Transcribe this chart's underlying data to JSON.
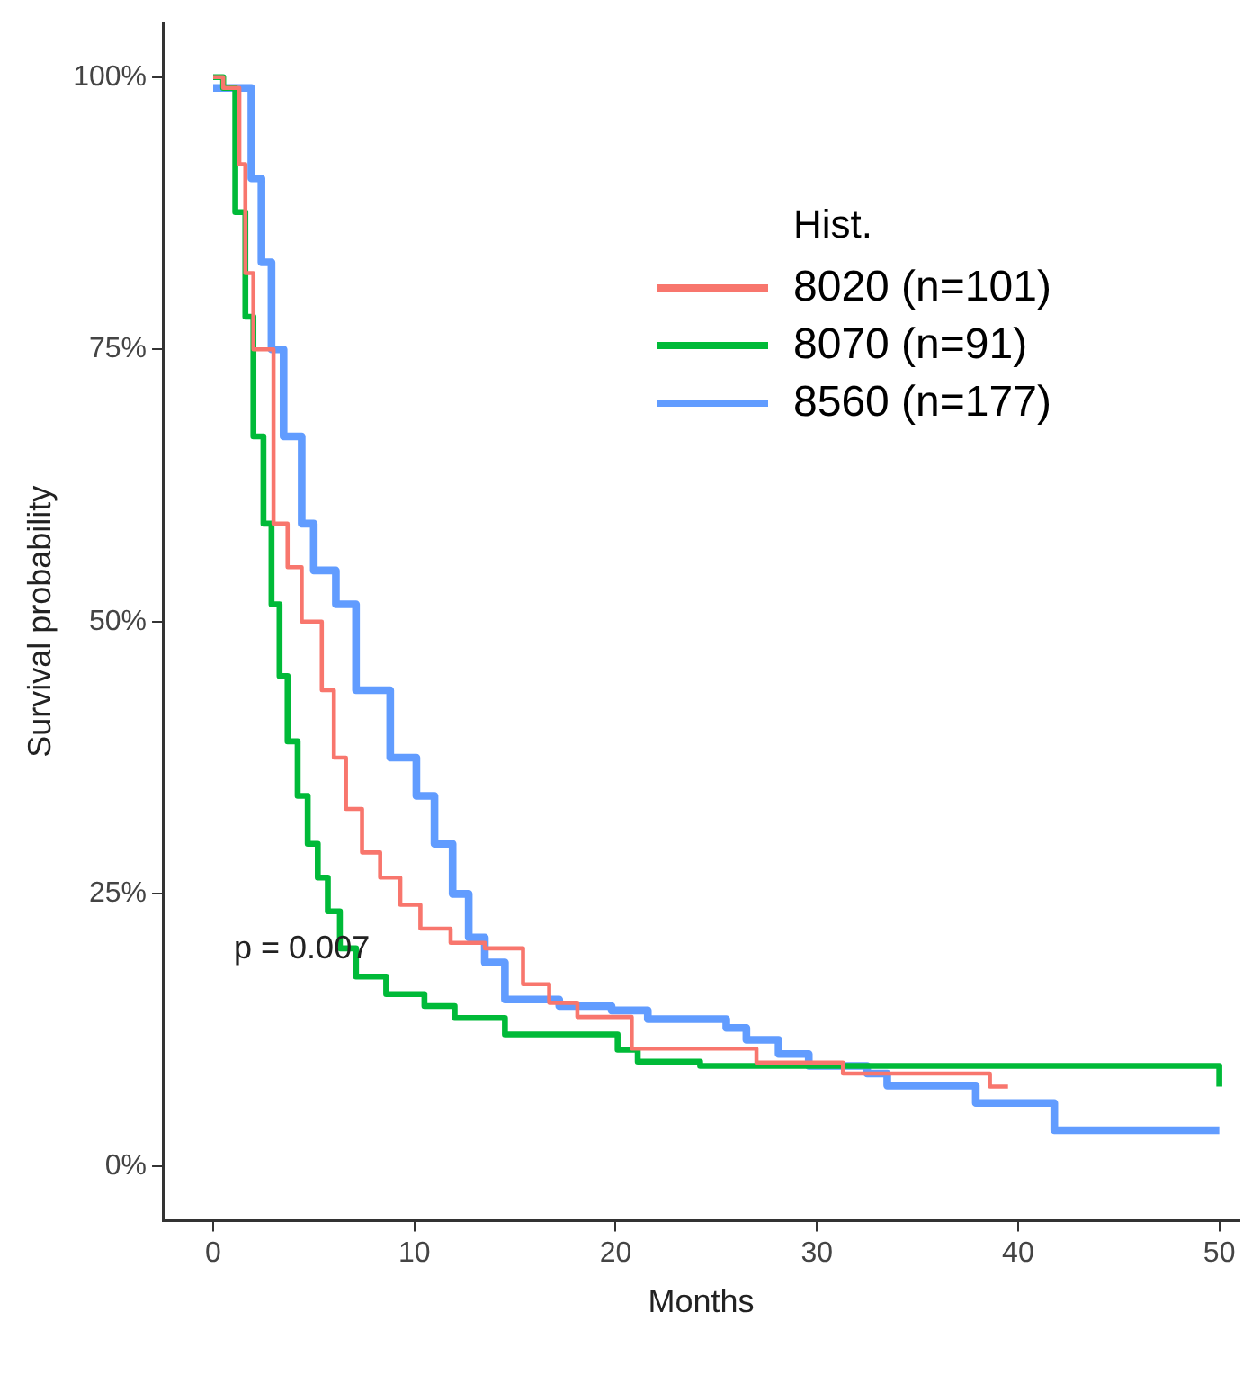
{
  "chart_data": {
    "type": "step",
    "xlabel": "Months",
    "ylabel": "Survival probability",
    "legend_title": "Hist.",
    "legend": "top right",
    "grid": false,
    "xlim": [
      -2.5,
      51
    ],
    "xticks": [
      0,
      10,
      20,
      30,
      40,
      50
    ],
    "ylim": [
      -5,
      105
    ],
    "yticks": [
      {
        "value": 0,
        "label": "0%"
      },
      {
        "value": 25,
        "label": "25%"
      },
      {
        "value": 50,
        "label": "50%"
      },
      {
        "value": 75,
        "label": "75%"
      },
      {
        "value": 100,
        "label": "100%"
      }
    ],
    "annotations": [
      "p = 0.007"
    ],
    "series": [
      {
        "name": "8020 (n=101)",
        "color": "#f8766d",
        "x": [
          0,
          0.5,
          1.3,
          1.6,
          2.0,
          3.0,
          3.7,
          4.4,
          5.4,
          6.0,
          6.6,
          7.4,
          8.3,
          9.3,
          10.3,
          11.8,
          13.5,
          15.4,
          16.7,
          18.1,
          20.8,
          27,
          31.3,
          38.6,
          39.5
        ],
        "values": [
          100,
          99,
          92,
          82,
          75,
          59,
          55,
          50,
          43.7,
          37.5,
          32.8,
          28.8,
          26.5,
          24,
          21.8,
          20.5,
          20,
          16.7,
          15,
          13.7,
          10.8,
          9.5,
          8.5,
          7.3,
          7.3
        ]
      },
      {
        "name": "8070 (n=91)",
        "color": "#00ba38",
        "x": [
          0,
          0.5,
          1.1,
          1.6,
          2.0,
          2.5,
          2.9,
          3.3,
          3.7,
          4.2,
          4.7,
          5.2,
          5.7,
          6.3,
          7.1,
          8.6,
          10.5,
          12.0,
          14.5,
          20.1,
          21.1,
          24.2,
          50
        ],
        "values": [
          100,
          99,
          87.6,
          78,
          67,
          59,
          51.6,
          45,
          39,
          34,
          29.6,
          26.5,
          23.4,
          20,
          17.4,
          15.8,
          14.7,
          13.6,
          12.1,
          10.7,
          9.6,
          9.2,
          7.3
        ]
      },
      {
        "name": "8560 (n=177)",
        "color": "#619cff",
        "x": [
          0,
          1.5,
          1.9,
          2.4,
          2.9,
          3.5,
          4.4,
          5.0,
          6.1,
          7.1,
          8.8,
          10.1,
          11.0,
          11.9,
          12.7,
          13.5,
          14.5,
          17.2,
          19.8,
          21.6,
          25.5,
          26.5,
          28.1,
          29.6,
          32.5,
          33.5,
          37.9,
          41.8,
          50
        ],
        "values": [
          99,
          99,
          90.7,
          83,
          75,
          67,
          59,
          54.7,
          51.6,
          43.7,
          37.5,
          34,
          29.6,
          25,
          21,
          18.7,
          15.3,
          14.7,
          14.3,
          13.5,
          12.7,
          11.6,
          10.3,
          9.2,
          8.5,
          7.4,
          5.8,
          3.3,
          3.3
        ]
      }
    ]
  }
}
